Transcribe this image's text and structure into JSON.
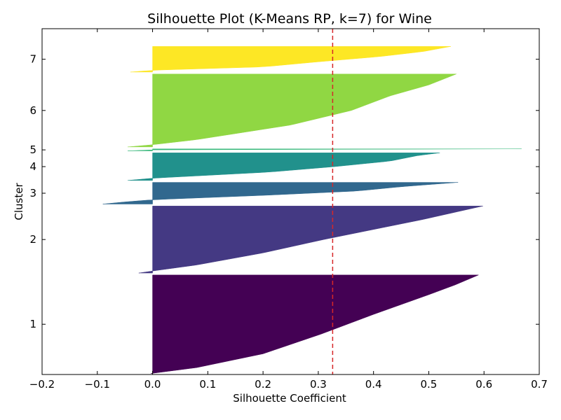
{
  "chart_data": {
    "type": "silhouette",
    "title": "Silhouette Plot (K-Means RP, k=7) for Wine",
    "xlabel": "Silhouette Coefficient",
    "ylabel": "Cluster",
    "xlim": [
      -0.2,
      0.7
    ],
    "xticks": [
      "−0.2",
      "−0.1",
      "0.0",
      "0.1",
      "0.2",
      "0.3",
      "0.4",
      "0.5",
      "0.6",
      "0.7"
    ],
    "xtick_values": [
      -0.2,
      -0.1,
      0.0,
      0.1,
      0.2,
      0.3,
      0.4,
      0.5,
      0.6,
      0.7
    ],
    "grid": false,
    "mean_silhouette": 0.326,
    "mean_line_color": "#d62728",
    "clusters": [
      {
        "label": "1",
        "size": 50,
        "color": "#440154",
        "profile": [
          [
            0,
            -0.003
          ],
          [
            0.06,
            0.08
          ],
          [
            0.2,
            0.2
          ],
          [
            0.4,
            0.305
          ],
          [
            0.6,
            0.4
          ],
          [
            0.8,
            0.5
          ],
          [
            0.9,
            0.548
          ],
          [
            1,
            0.59
          ]
        ]
      },
      {
        "label": "2",
        "size": 34,
        "color": "#443983",
        "profile": [
          [
            0,
            -0.025
          ],
          [
            0.03,
            0.0
          ],
          [
            0.12,
            0.08
          ],
          [
            0.3,
            0.2
          ],
          [
            0.5,
            0.31
          ],
          [
            0.65,
            0.4
          ],
          [
            0.8,
            0.49
          ],
          [
            0.93,
            0.56
          ],
          [
            1,
            0.598
          ]
        ]
      },
      {
        "label": "3",
        "size": 11,
        "color": "#31688e",
        "profile": [
          [
            0,
            -0.09
          ],
          [
            0.1,
            -0.05
          ],
          [
            0.2,
            0.0
          ],
          [
            0.4,
            0.2
          ],
          [
            0.6,
            0.37
          ],
          [
            0.8,
            0.45
          ],
          [
            1,
            0.553
          ]
        ]
      },
      {
        "label": "4",
        "size": 14,
        "color": "#21918c",
        "profile": [
          [
            0,
            -0.045
          ],
          [
            0.08,
            0.0
          ],
          [
            0.3,
            0.21
          ],
          [
            0.5,
            0.33
          ],
          [
            0.7,
            0.43
          ],
          [
            0.9,
            0.48
          ],
          [
            1,
            0.52
          ]
        ]
      },
      {
        "label": "5",
        "size": 1,
        "color": "#35b779",
        "profile": [
          [
            0,
            -0.045
          ],
          [
            0.5,
            0.0
          ],
          [
            1,
            0.668
          ]
        ]
      },
      {
        "label": "6",
        "size": 37,
        "color": "#90d743",
        "profile": [
          [
            0,
            -0.045
          ],
          [
            0.03,
            0.0
          ],
          [
            0.1,
            0.08
          ],
          [
            0.3,
            0.25
          ],
          [
            0.5,
            0.36
          ],
          [
            0.7,
            0.43
          ],
          [
            0.85,
            0.5
          ],
          [
            1,
            0.55
          ]
        ]
      },
      {
        "label": "7",
        "size": 13,
        "color": "#fde725",
        "profile": [
          [
            0,
            -0.04
          ],
          [
            0.07,
            0.0
          ],
          [
            0.2,
            0.2
          ],
          [
            0.4,
            0.3
          ],
          [
            0.6,
            0.41
          ],
          [
            0.8,
            0.49
          ],
          [
            1,
            0.54
          ]
        ]
      }
    ],
    "cluster_gap": 1,
    "bottom_padding": 0.5,
    "top_padding": 9
  }
}
